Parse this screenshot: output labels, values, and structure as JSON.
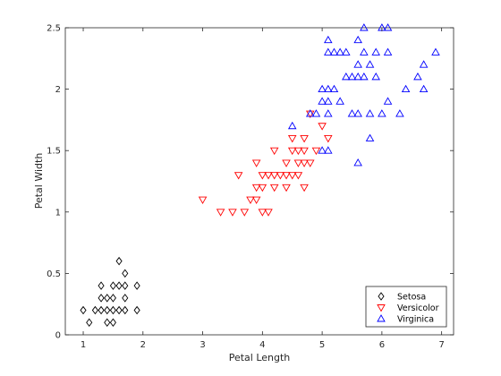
{
  "chart_data": {
    "type": "scatter",
    "title": "",
    "xlabel": "Petal Length",
    "ylabel": "Petal Width",
    "xlim": [
      0.7,
      7.2
    ],
    "ylim": [
      0,
      2.5
    ],
    "xticks": [
      1,
      2,
      3,
      4,
      5,
      6,
      7
    ],
    "yticks": [
      0,
      0.5,
      1,
      1.5,
      2,
      2.5
    ],
    "xtick_labels": [
      "1",
      "2",
      "3",
      "4",
      "5",
      "6",
      "7"
    ],
    "ytick_labels": [
      "0",
      "0.5",
      "1",
      "1.5",
      "2",
      "2.5"
    ],
    "grid": false,
    "legend_position": "bottom-right",
    "series": [
      {
        "name": "Setosa",
        "marker": "diamond",
        "color": "#000000",
        "points": [
          [
            1.0,
            0.2
          ],
          [
            1.1,
            0.1
          ],
          [
            1.2,
            0.2
          ],
          [
            1.3,
            0.2
          ],
          [
            1.3,
            0.3
          ],
          [
            1.3,
            0.4
          ],
          [
            1.4,
            0.1
          ],
          [
            1.4,
            0.2
          ],
          [
            1.4,
            0.3
          ],
          [
            1.5,
            0.1
          ],
          [
            1.5,
            0.2
          ],
          [
            1.5,
            0.3
          ],
          [
            1.5,
            0.4
          ],
          [
            1.6,
            0.2
          ],
          [
            1.6,
            0.4
          ],
          [
            1.6,
            0.6
          ],
          [
            1.7,
            0.2
          ],
          [
            1.7,
            0.3
          ],
          [
            1.7,
            0.4
          ],
          [
            1.7,
            0.5
          ],
          [
            1.9,
            0.2
          ],
          [
            1.9,
            0.4
          ]
        ]
      },
      {
        "name": "Versicolor",
        "marker": "triangle-down",
        "color": "#ff0000",
        "points": [
          [
            3.0,
            1.1
          ],
          [
            3.3,
            1.0
          ],
          [
            3.5,
            1.0
          ],
          [
            3.6,
            1.3
          ],
          [
            3.7,
            1.0
          ],
          [
            3.8,
            1.1
          ],
          [
            3.9,
            1.1
          ],
          [
            3.9,
            1.2
          ],
          [
            3.9,
            1.4
          ],
          [
            4.0,
            1.0
          ],
          [
            4.0,
            1.2
          ],
          [
            4.0,
            1.3
          ],
          [
            4.1,
            1.0
          ],
          [
            4.1,
            1.3
          ],
          [
            4.2,
            1.2
          ],
          [
            4.2,
            1.3
          ],
          [
            4.2,
            1.5
          ],
          [
            4.3,
            1.3
          ],
          [
            4.4,
            1.2
          ],
          [
            4.4,
            1.3
          ],
          [
            4.4,
            1.4
          ],
          [
            4.5,
            1.3
          ],
          [
            4.5,
            1.5
          ],
          [
            4.5,
            1.6
          ],
          [
            4.6,
            1.3
          ],
          [
            4.6,
            1.4
          ],
          [
            4.6,
            1.5
          ],
          [
            4.7,
            1.2
          ],
          [
            4.7,
            1.4
          ],
          [
            4.7,
            1.5
          ],
          [
            4.7,
            1.6
          ],
          [
            4.8,
            1.4
          ],
          [
            4.8,
            1.8
          ],
          [
            4.9,
            1.5
          ],
          [
            5.0,
            1.7
          ],
          [
            5.1,
            1.6
          ]
        ]
      },
      {
        "name": "Virginica",
        "marker": "triangle-up",
        "color": "#0000ff",
        "points": [
          [
            4.5,
            1.7
          ],
          [
            4.8,
            1.8
          ],
          [
            4.9,
            1.8
          ],
          [
            5.0,
            1.5
          ],
          [
            5.0,
            1.9
          ],
          [
            5.0,
            2.0
          ],
          [
            5.1,
            1.5
          ],
          [
            5.1,
            1.8
          ],
          [
            5.1,
            1.9
          ],
          [
            5.1,
            2.0
          ],
          [
            5.1,
            2.3
          ],
          [
            5.1,
            2.4
          ],
          [
            5.2,
            2.0
          ],
          [
            5.2,
            2.3
          ],
          [
            5.3,
            1.9
          ],
          [
            5.3,
            2.3
          ],
          [
            5.4,
            2.1
          ],
          [
            5.4,
            2.3
          ],
          [
            5.5,
            1.8
          ],
          [
            5.5,
            2.1
          ],
          [
            5.6,
            1.4
          ],
          [
            5.6,
            1.8
          ],
          [
            5.6,
            2.1
          ],
          [
            5.6,
            2.2
          ],
          [
            5.6,
            2.4
          ],
          [
            5.7,
            2.1
          ],
          [
            5.7,
            2.3
          ],
          [
            5.7,
            2.5
          ],
          [
            5.8,
            1.6
          ],
          [
            5.8,
            1.8
          ],
          [
            5.8,
            2.2
          ],
          [
            5.9,
            2.1
          ],
          [
            5.9,
            2.3
          ],
          [
            6.0,
            1.8
          ],
          [
            6.0,
            2.5
          ],
          [
            6.1,
            1.9
          ],
          [
            6.1,
            2.3
          ],
          [
            6.1,
            2.5
          ],
          [
            6.3,
            1.8
          ],
          [
            6.4,
            2.0
          ],
          [
            6.6,
            2.1
          ],
          [
            6.7,
            2.0
          ],
          [
            6.7,
            2.2
          ],
          [
            6.9,
            2.3
          ]
        ]
      }
    ]
  }
}
